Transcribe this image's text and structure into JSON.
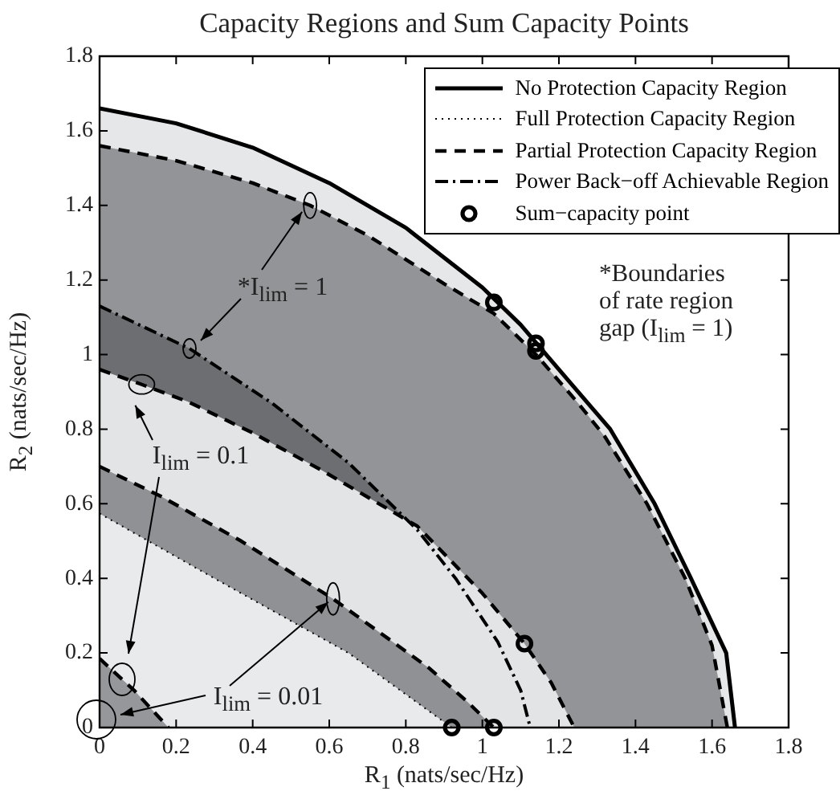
{
  "chart_data": {
    "type": "area",
    "title": "Capacity Regions and Sum Capacity Points",
    "xlabel": "R$_{1}$ (nats/sec/Hz)",
    "ylabel": "R$_{2}$ (nats/sec/Hz)",
    "xlim": [
      0,
      1.8
    ],
    "ylim": [
      0,
      1.8
    ],
    "xticks": [
      0,
      0.2,
      0.4,
      0.6,
      0.8,
      1,
      1.2,
      1.4,
      1.6,
      1.8
    ],
    "yticks": [
      0,
      0.2,
      0.4,
      0.6,
      0.8,
      1,
      1.2,
      1.4,
      1.6,
      1.8
    ],
    "grid": false,
    "legend": "top right",
    "series": [
      {
        "name": "No Protection Capacity Region",
        "color": "#e6e7e9",
        "line_style": "solid",
        "x": [
          0,
          0.2,
          0.4,
          0.6,
          0.8,
          1.0,
          1.1,
          1.2,
          1.334,
          1.45,
          1.545,
          1.637,
          1.66
        ],
        "values": [
          1.66,
          1.62,
          1.555,
          1.46,
          1.34,
          1.18,
          1.08,
          0.96,
          0.8,
          0.6,
          0.4,
          0.2,
          0
        ]
      },
      {
        "name": "Full Protection Capacity Region",
        "color": "#e9eaec",
        "line_style": "dotted",
        "x": [
          0,
          0.3,
          0.65,
          0.92
        ],
        "values": [
          0.574,
          0.4,
          0.2,
          0
        ]
      },
      {
        "name": "Partial Protection Capacity Region",
        "color": "#939497",
        "line_style": "dashed",
        "x": [
          0,
          0.2,
          0.4,
          0.55,
          0.7,
          0.9,
          1.03,
          1.14,
          1.25,
          1.32,
          1.43,
          1.53,
          1.6,
          1.64
        ],
        "values": [
          1.56,
          1.52,
          1.46,
          1.4,
          1.32,
          1.19,
          1.11,
          1.0,
          0.87,
          0.78,
          0.6,
          0.4,
          0.22,
          0
        ]
      },
      {
        "name": "Power Back−off Achievable Region",
        "color": "#6d6e71",
        "line_style": "dashdot",
        "x": [
          0,
          0.235,
          0.45,
          0.65,
          0.83,
          0.93,
          1.04,
          1.1,
          1.125
        ],
        "values": [
          1.13,
          1.016,
          0.87,
          0.71,
          0.53,
          0.4,
          0.23,
          0.1,
          0
        ]
      },
      {
        "color": "#e3e4e6",
        "line_style": "dashed",
        "x": [
          0,
          0.11,
          0.23,
          0.4,
          0.58,
          0.83,
          1.0,
          1.11,
          1.18,
          1.24
        ],
        "values": [
          0.96,
          0.92,
          0.874,
          0.79,
          0.69,
          0.54,
          0.36,
          0.225,
          0.12,
          0
        ]
      },
      {
        "color": "#909194",
        "line_style": "dashed",
        "x": [
          0,
          0.16,
          0.37,
          0.61,
          0.86,
          0.96,
          1.03
        ],
        "values": [
          0.7,
          0.62,
          0.5,
          0.345,
          0.16,
          0.07,
          0
        ]
      },
      {
        "color": "#96979a",
        "line_style": "dashed",
        "x": [
          0,
          0.09,
          0.18
        ],
        "values": [
          0.185,
          0.1,
          0
        ]
      },
      {
        "type": "scatter",
        "name": "Sum−capacity point",
        "color": "#000000",
        "marker": "circle",
        "x": [
          1.03,
          1.14,
          1.14,
          1.11,
          0.92,
          1.03
        ],
        "values": [
          1.14,
          1.03,
          1.01,
          0.225,
          0,
          0
        ]
      }
    ],
    "annotations": [
      {
        "text": "*I$_{lim}$ = 1",
        "x": 0.55,
        "y": 1.4
      },
      {
        "text": "I$_{lim}$ = 0.1",
        "x": 0.11,
        "y": 0.92
      },
      {
        "text": "I$_{lim}$ = 0.01",
        "x": 0.61,
        "y": 0.345
      },
      "*Boundaries of rate region gap (I$_{lim}$ = 1)"
    ]
  }
}
